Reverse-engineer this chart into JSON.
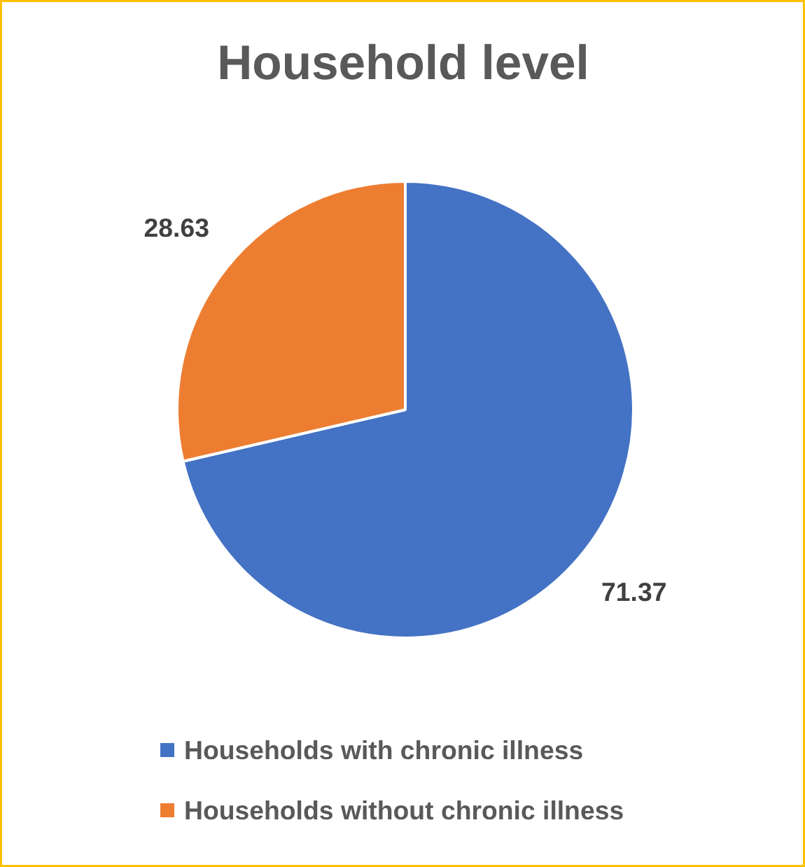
{
  "chart_data": {
    "type": "pie",
    "title": "Household level",
    "categories": [
      "Households with chronic illness",
      "Households without chronic illness"
    ],
    "values": [
      71.37,
      28.63
    ],
    "colors": [
      "#4472c4",
      "#ed7d31"
    ],
    "data_labels": true,
    "legend": "bottom"
  }
}
